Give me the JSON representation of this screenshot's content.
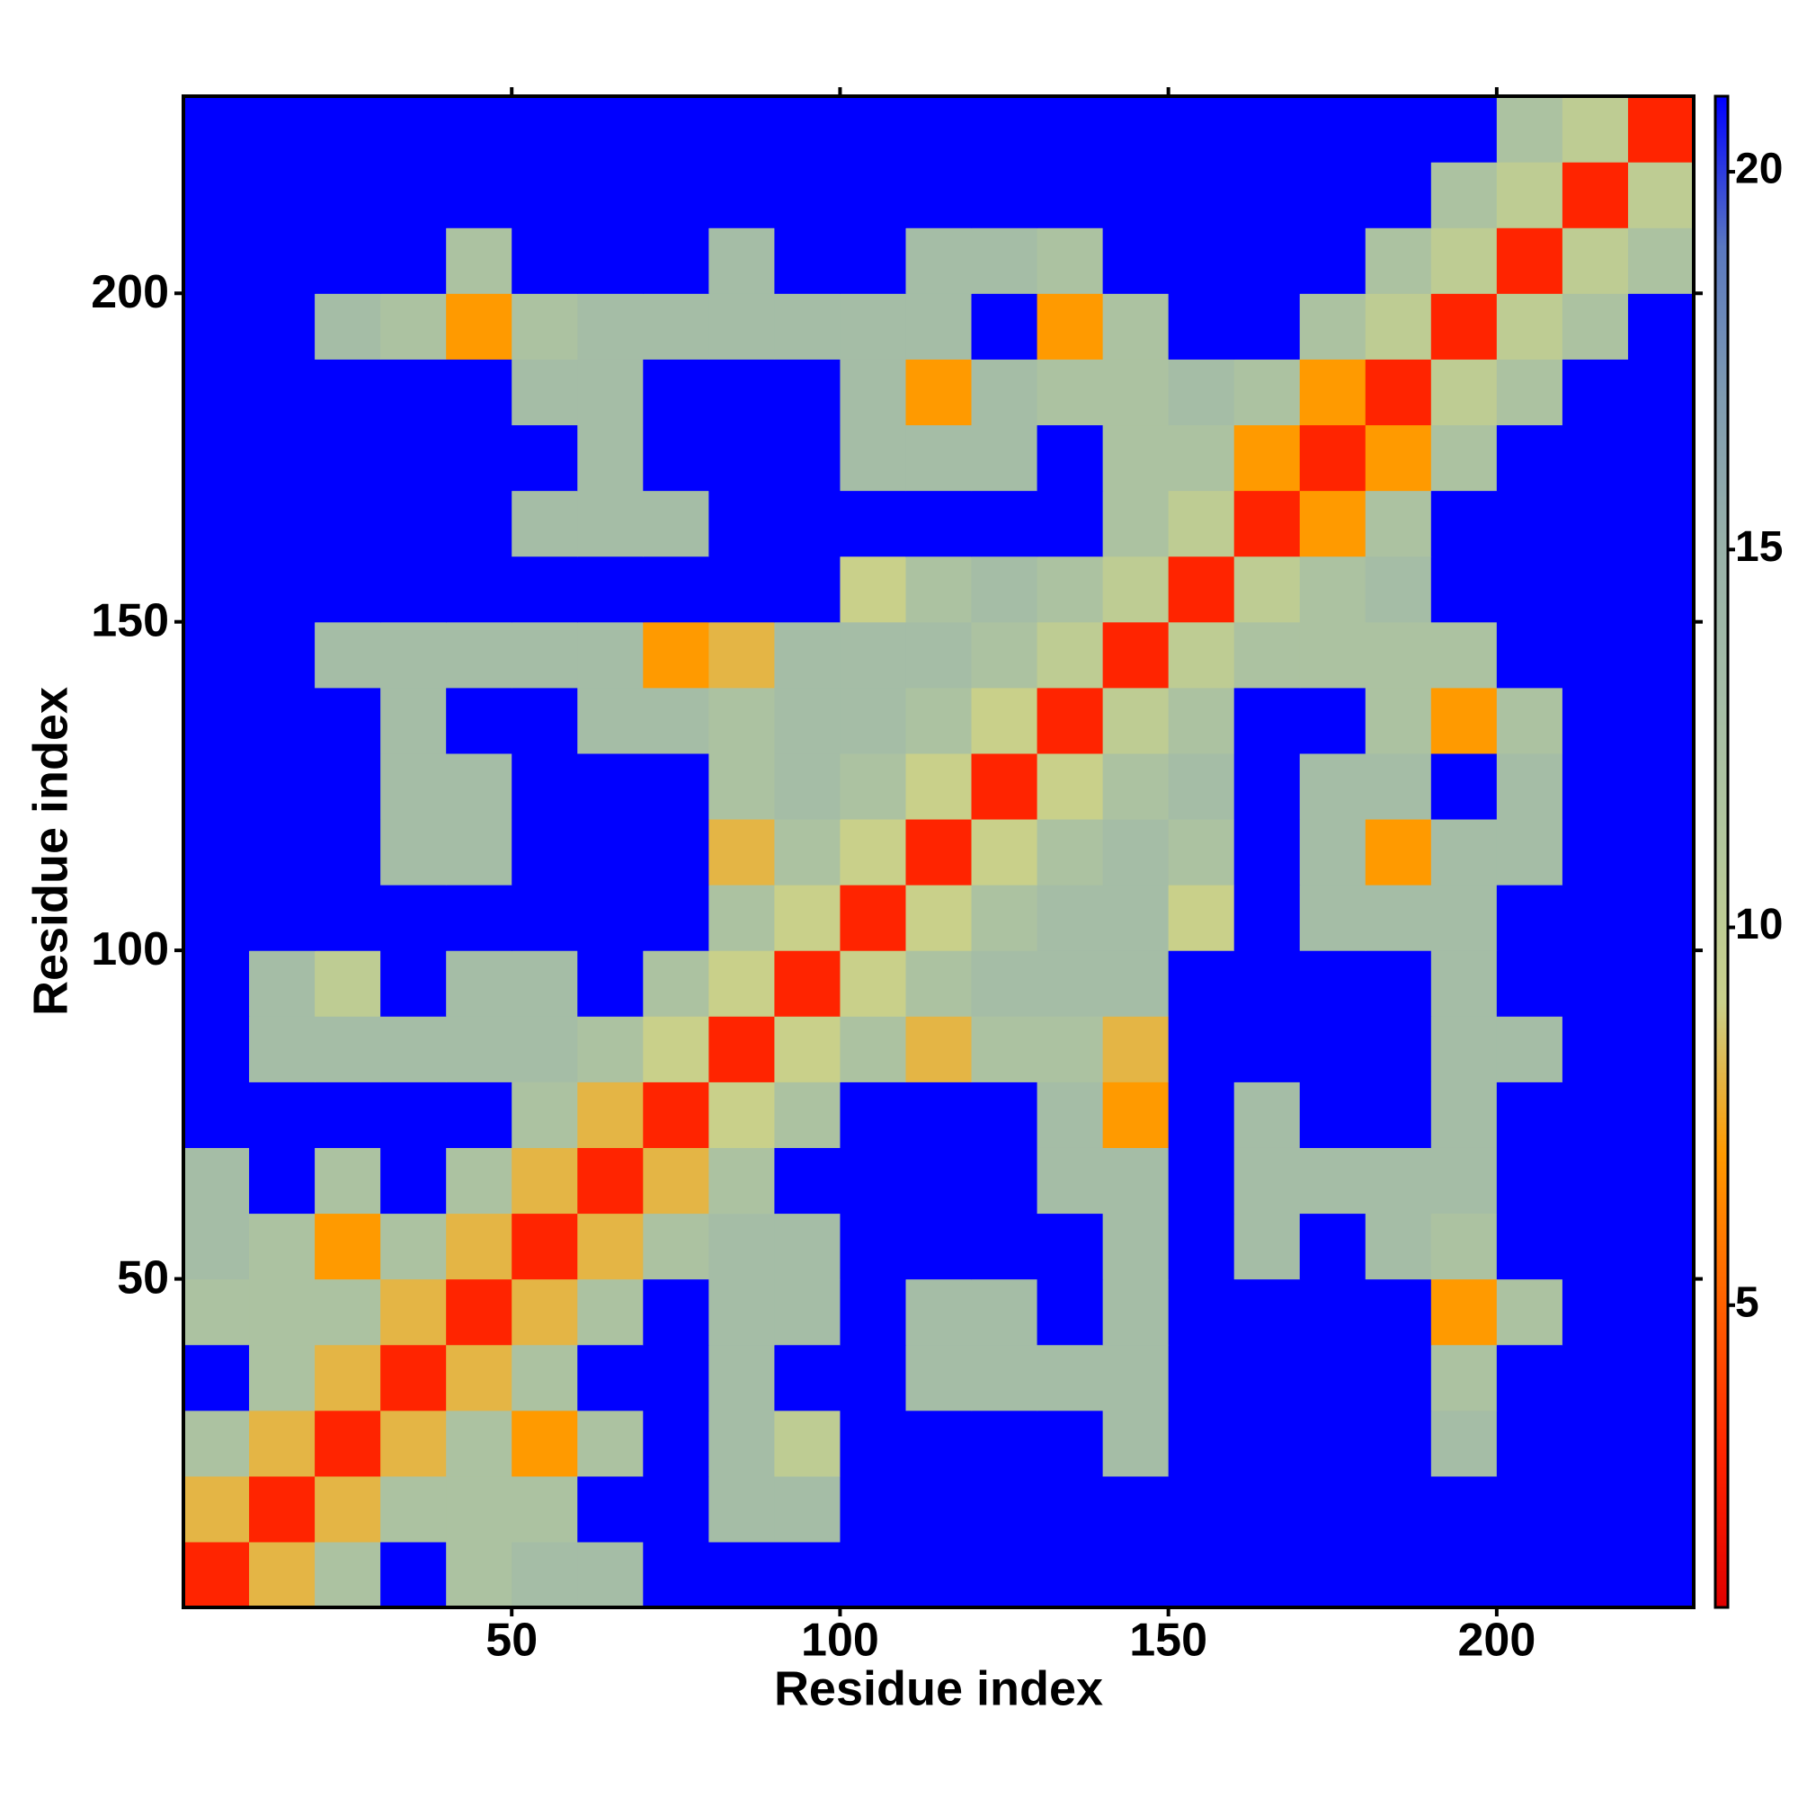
{
  "chart_data": {
    "type": "heatmap",
    "xlabel": "Residue index",
    "ylabel": "Residue index",
    "x_bins": [
      0,
      10,
      20,
      30,
      40,
      50,
      60,
      70,
      80,
      90,
      100,
      110,
      120,
      130,
      140,
      150,
      160,
      170,
      180,
      190,
      200,
      210,
      220,
      230
    ],
    "y_bins": [
      0,
      10,
      20,
      30,
      40,
      50,
      60,
      70,
      80,
      90,
      100,
      110,
      120,
      130,
      140,
      150,
      160,
      170,
      180,
      190,
      200,
      210,
      220,
      230
    ],
    "xlim": [
      0,
      230
    ],
    "ylim": [
      0,
      230
    ],
    "xticks": [
      50,
      100,
      150,
      200
    ],
    "yticks": [
      50,
      100,
      150,
      200
    ],
    "clim": [
      1,
      21
    ],
    "cticks": [
      5,
      10,
      15,
      20
    ],
    "colormap": [
      "#e00000",
      "#ff2400",
      "#ff6000",
      "#ff9a00",
      "#c9d08a",
      "#b3c79c",
      "#a5bda6",
      "#98b1a8",
      "#7f9bb0",
      "#5a78c0",
      "#0000ff"
    ],
    "z": [
      [
        3,
        8,
        12,
        21,
        12,
        13,
        13,
        21,
        21,
        21,
        21,
        21,
        21,
        21,
        21,
        21,
        21,
        21,
        21,
        21,
        21,
        21,
        21
      ],
      [
        8,
        3,
        8,
        12,
        12,
        12,
        21,
        21,
        13,
        13,
        21,
        21,
        21,
        21,
        21,
        21,
        21,
        21,
        21,
        21,
        21,
        21,
        21
      ],
      [
        12,
        8,
        3,
        8,
        12,
        7,
        12,
        21,
        13,
        10,
        21,
        21,
        21,
        21,
        13,
        21,
        21,
        21,
        21,
        13,
        21,
        21,
        21
      ],
      [
        21,
        12,
        8,
        3,
        8,
        12,
        21,
        21,
        13,
        21,
        21,
        13,
        13,
        13,
        13,
        21,
        21,
        21,
        21,
        12,
        21,
        21,
        21
      ],
      [
        12,
        12,
        12,
        8,
        3,
        8,
        12,
        21,
        13,
        13,
        21,
        13,
        13,
        21,
        13,
        21,
        21,
        21,
        21,
        7,
        12,
        21,
        21
      ],
      [
        13,
        12,
        7,
        12,
        8,
        3,
        8,
        12,
        13,
        13,
        21,
        21,
        21,
        21,
        13,
        21,
        13,
        21,
        13,
        12,
        21,
        21,
        21
      ],
      [
        13,
        21,
        12,
        21,
        12,
        8,
        3,
        8,
        12,
        21,
        21,
        21,
        21,
        13,
        13,
        21,
        13,
        13,
        13,
        13,
        21,
        21,
        21
      ],
      [
        21,
        21,
        21,
        21,
        21,
        12,
        8,
        3,
        9,
        12,
        21,
        21,
        21,
        13,
        7,
        21,
        13,
        21,
        21,
        13,
        21,
        21,
        21
      ],
      [
        21,
        13,
        13,
        13,
        13,
        13,
        12,
        9,
        3,
        9,
        12,
        8,
        12,
        12,
        8,
        21,
        21,
        21,
        21,
        13,
        13,
        21,
        21
      ],
      [
        21,
        13,
        10,
        21,
        13,
        13,
        21,
        12,
        9,
        3,
        9,
        12,
        13,
        13,
        13,
        21,
        21,
        21,
        21,
        13,
        21,
        21,
        21
      ],
      [
        21,
        21,
        21,
        21,
        21,
        21,
        21,
        21,
        12,
        9,
        3,
        9,
        12,
        13,
        13,
        9,
        21,
        13,
        13,
        13,
        21,
        21,
        21
      ],
      [
        21,
        21,
        21,
        13,
        13,
        21,
        21,
        21,
        8,
        12,
        9,
        3,
        9,
        12,
        13,
        12,
        21,
        13,
        7,
        13,
        13,
        21,
        21
      ],
      [
        21,
        21,
        21,
        13,
        13,
        21,
        21,
        21,
        12,
        13,
        12,
        9,
        3,
        9,
        12,
        13,
        21,
        13,
        13,
        21,
        13,
        21,
        21
      ],
      [
        21,
        21,
        21,
        13,
        21,
        21,
        13,
        13,
        12,
        13,
        13,
        12,
        9,
        3,
        10,
        12,
        21,
        21,
        12,
        7,
        12,
        21,
        21
      ],
      [
        21,
        21,
        13,
        13,
        13,
        13,
        13,
        7,
        8,
        13,
        13,
        13,
        12,
        10,
        3,
        10,
        12,
        12,
        12,
        12,
        21,
        21,
        21
      ],
      [
        21,
        21,
        21,
        21,
        21,
        21,
        21,
        21,
        21,
        21,
        9,
        12,
        13,
        12,
        10,
        3,
        10,
        12,
        13,
        21,
        21,
        21,
        21
      ],
      [
        21,
        21,
        21,
        21,
        21,
        13,
        13,
        13,
        21,
        21,
        21,
        21,
        21,
        21,
        12,
        10,
        3,
        7,
        12,
        21,
        21,
        21,
        21
      ],
      [
        21,
        21,
        21,
        21,
        21,
        21,
        13,
        21,
        21,
        21,
        13,
        13,
        13,
        21,
        12,
        12,
        7,
        3,
        7,
        12,
        21,
        21,
        21
      ],
      [
        21,
        21,
        21,
        21,
        21,
        13,
        13,
        21,
        21,
        21,
        13,
        7,
        13,
        12,
        12,
        13,
        12,
        7,
        3,
        10,
        12,
        21,
        21
      ],
      [
        21,
        21,
        13,
        12,
        7,
        12,
        13,
        13,
        13,
        13,
        13,
        13,
        21,
        7,
        12,
        21,
        21,
        12,
        10,
        3,
        10,
        12,
        21
      ],
      [
        21,
        21,
        21,
        21,
        12,
        21,
        21,
        21,
        13,
        21,
        21,
        13,
        13,
        12,
        21,
        21,
        21,
        21,
        12,
        10,
        3,
        10,
        12
      ],
      [
        21,
        21,
        21,
        21,
        21,
        21,
        21,
        21,
        21,
        21,
        21,
        21,
        21,
        21,
        21,
        21,
        21,
        21,
        21,
        12,
        10,
        3,
        10
      ],
      [
        21,
        21,
        21,
        21,
        21,
        21,
        21,
        21,
        21,
        21,
        21,
        21,
        21,
        21,
        21,
        21,
        21,
        21,
        21,
        21,
        12,
        10,
        3
      ]
    ]
  }
}
